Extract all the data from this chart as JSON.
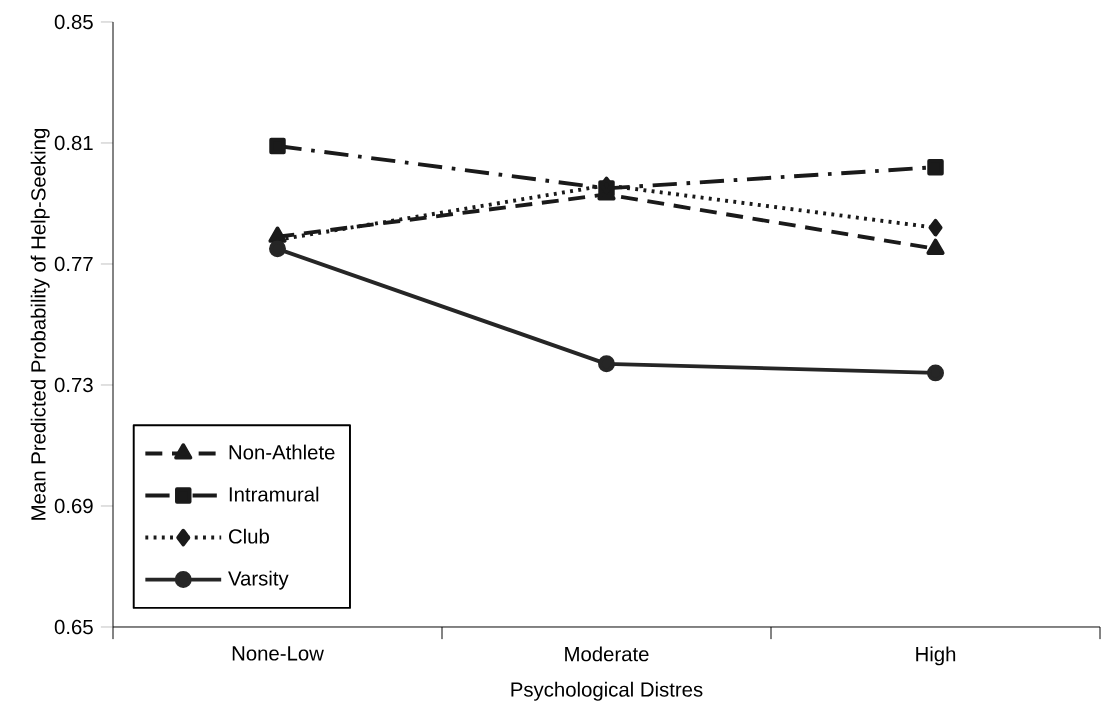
{
  "chart_data": {
    "type": "line",
    "xlabel": "Psychological Distres",
    "ylabel": "Mean Predicted Probability of Help-Seeking",
    "categories": [
      "None-Low",
      "Moderate",
      "High"
    ],
    "series": [
      {
        "name": "Non-Athlete",
        "color": "#1a1a1a",
        "values": [
          0.779,
          0.793,
          0.775
        ],
        "marker": "triangle",
        "line_style": "dashed"
      },
      {
        "name": "Intramural",
        "color": "#1a1a1a",
        "values": [
          0.809,
          0.795,
          0.802
        ],
        "marker": "square",
        "line_style": "dashdot"
      },
      {
        "name": "Club",
        "color": "#1a1a1a",
        "values": [
          0.778,
          0.796,
          0.782
        ],
        "marker": "diamond",
        "line_style": "dotted"
      },
      {
        "name": "Varsity",
        "color": "#262626",
        "values": [
          0.775,
          0.737,
          0.734
        ],
        "marker": "circle",
        "line_style": "solid"
      }
    ],
    "ylim": [
      0.65,
      0.85
    ],
    "yticks": [
      0.65,
      0.69,
      0.73,
      0.77,
      0.81,
      0.85
    ],
    "grid": false,
    "legend": "bottom left"
  }
}
